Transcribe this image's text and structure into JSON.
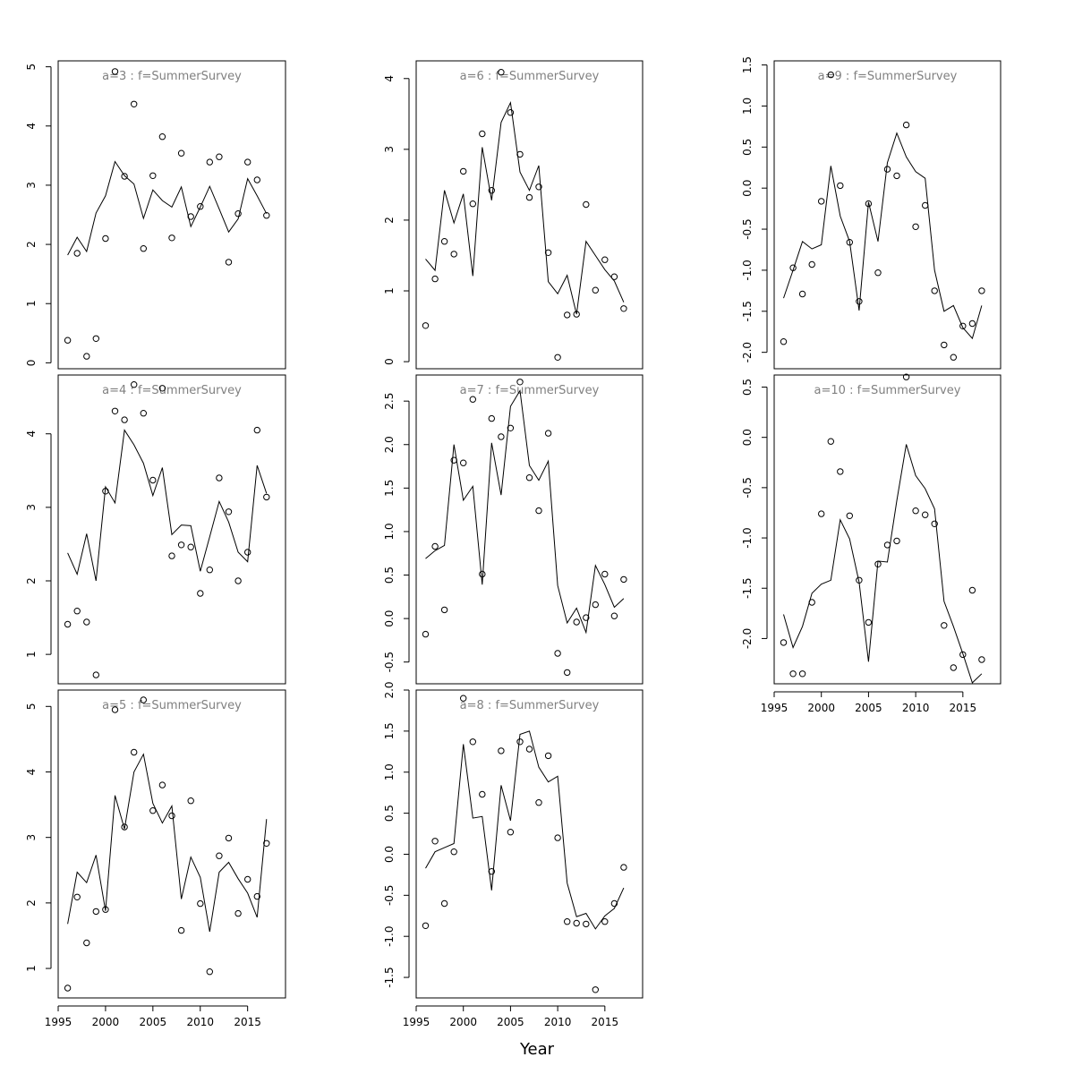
{
  "figure": {
    "xlabel": "Year"
  },
  "chart_data": [
    {
      "type": "line",
      "title": "a=3  :  f=SummerSurvey",
      "xlim": [
        1995,
        2019
      ],
      "ylim": [
        -0.1,
        5.1
      ],
      "yticks": [
        0,
        1,
        2,
        3,
        4,
        5
      ],
      "xticks": [],
      "x": [
        1996,
        1997,
        1998,
        1999,
        2000,
        2001,
        2002,
        2003,
        2004,
        2005,
        2006,
        2007,
        2008,
        2009,
        2010,
        2011,
        2012,
        2013,
        2014,
        2015,
        2016,
        2017
      ],
      "series": [
        {
          "kind": "observed",
          "values": [
            0.38,
            1.85,
            0.11,
            0.41,
            2.1,
            4.92,
            3.15,
            4.37,
            1.93,
            3.16,
            3.82,
            2.11,
            3.54,
            2.47,
            2.64,
            3.39,
            3.48,
            1.7,
            2.52,
            3.39,
            3.09,
            2.49
          ]
        },
        {
          "kind": "fitted",
          "values": [
            1.82,
            2.12,
            1.88,
            2.53,
            2.82,
            3.4,
            3.16,
            3.02,
            2.44,
            2.92,
            2.74,
            2.63,
            2.97,
            2.3,
            2.63,
            2.98,
            2.6,
            2.21,
            2.43,
            3.11,
            2.82,
            2.52
          ]
        }
      ]
    },
    {
      "type": "line",
      "title": "a=4  :  f=SummerSurvey",
      "xlim": [
        1995,
        2019
      ],
      "ylim": [
        0.6,
        4.8
      ],
      "yticks": [
        1,
        2,
        3,
        4
      ],
      "xticks": [],
      "x": [
        1996,
        1997,
        1998,
        1999,
        2000,
        2001,
        2002,
        2003,
        2004,
        2005,
        2006,
        2007,
        2008,
        2009,
        2010,
        2011,
        2012,
        2013,
        2014,
        2015,
        2016,
        2017
      ],
      "series": [
        {
          "kind": "observed",
          "values": [
            1.41,
            1.59,
            1.44,
            0.72,
            3.22,
            4.31,
            4.19,
            4.67,
            4.28,
            3.37,
            4.62,
            2.34,
            2.49,
            2.46,
            1.83,
            2.15,
            3.4,
            2.94,
            2.0,
            2.39,
            4.05,
            3.14
          ]
        },
        {
          "kind": "fitted",
          "values": [
            2.38,
            2.09,
            2.64,
            2.0,
            3.28,
            3.06,
            4.05,
            3.85,
            3.6,
            3.16,
            3.54,
            2.63,
            2.76,
            2.75,
            2.13,
            2.6,
            3.08,
            2.8,
            2.39,
            2.26,
            3.57,
            3.19
          ]
        }
      ]
    },
    {
      "type": "line",
      "title": "a=5  :  f=SummerSurvey",
      "xlim": [
        1995,
        2019
      ],
      "ylim": [
        0.55,
        5.25
      ],
      "yticks": [
        1,
        2,
        3,
        4,
        5
      ],
      "xticks": [
        1995,
        2000,
        2005,
        2010,
        2015
      ],
      "x": [
        1996,
        1997,
        1998,
        1999,
        2000,
        2001,
        2002,
        2003,
        2004,
        2005,
        2006,
        2007,
        2008,
        2009,
        2010,
        2011,
        2012,
        2013,
        2014,
        2015,
        2016,
        2017
      ],
      "series": [
        {
          "kind": "observed",
          "values": [
            0.7,
            2.09,
            1.39,
            1.87,
            1.9,
            4.95,
            3.16,
            4.3,
            5.1,
            3.41,
            3.8,
            3.33,
            1.58,
            3.56,
            1.99,
            0.95,
            2.72,
            2.99,
            1.84,
            2.36,
            2.1,
            2.91
          ]
        },
        {
          "kind": "fitted",
          "values": [
            1.68,
            2.47,
            2.31,
            2.73,
            1.88,
            3.64,
            3.13,
            4.0,
            4.27,
            3.52,
            3.22,
            3.48,
            2.06,
            2.7,
            2.39,
            1.56,
            2.47,
            2.62,
            2.37,
            2.15,
            1.78,
            3.28
          ]
        }
      ]
    },
    {
      "type": "line",
      "title": "a=6  :  f=SummerSurvey",
      "xlim": [
        1995,
        2019
      ],
      "ylim": [
        -0.1,
        4.25
      ],
      "yticks": [
        0,
        1,
        2,
        3,
        4
      ],
      "xticks": [],
      "x": [
        1996,
        1997,
        1998,
        1999,
        2000,
        2001,
        2002,
        2003,
        2004,
        2005,
        2006,
        2007,
        2008,
        2009,
        2010,
        2011,
        2012,
        2013,
        2014,
        2015,
        2016,
        2017
      ],
      "series": [
        {
          "kind": "observed",
          "values": [
            0.51,
            1.17,
            1.7,
            1.52,
            2.69,
            2.23,
            3.22,
            2.42,
            4.09,
            3.52,
            2.93,
            2.32,
            2.47,
            1.54,
            0.06,
            0.66,
            0.67,
            2.22,
            1.01,
            1.44,
            1.2,
            0.75
          ]
        },
        {
          "kind": "fitted",
          "values": [
            1.45,
            1.29,
            2.42,
            1.96,
            2.37,
            1.21,
            3.03,
            2.28,
            3.38,
            3.66,
            2.68,
            2.42,
            2.77,
            1.13,
            0.96,
            1.22,
            0.67,
            1.7,
            1.5,
            1.3,
            1.14,
            0.84
          ]
        }
      ]
    },
    {
      "type": "line",
      "title": "a=7  :  f=SummerSurvey",
      "xlim": [
        1995,
        2019
      ],
      "ylim": [
        -0.75,
        2.8
      ],
      "yticks": [
        -0.5,
        0.0,
        0.5,
        1.0,
        1.5,
        2.0,
        2.5
      ],
      "xticks": [],
      "x": [
        1996,
        1997,
        1998,
        1999,
        2000,
        2001,
        2002,
        2003,
        2004,
        2005,
        2006,
        2007,
        2008,
        2009,
        2010,
        2011,
        2012,
        2013,
        2014,
        2015,
        2016,
        2017
      ],
      "series": [
        {
          "kind": "observed",
          "values": [
            -0.18,
            0.83,
            0.1,
            1.82,
            1.79,
            2.52,
            0.51,
            2.3,
            2.09,
            2.19,
            2.72,
            1.62,
            1.24,
            2.13,
            -0.4,
            -0.62,
            -0.04,
            0.01,
            0.16,
            0.51,
            0.03,
            0.45
          ]
        },
        {
          "kind": "fitted",
          "values": [
            0.69,
            0.78,
            0.84,
            2.0,
            1.36,
            1.52,
            0.39,
            2.02,
            1.42,
            2.44,
            2.62,
            1.76,
            1.59,
            1.81,
            0.38,
            -0.05,
            0.12,
            -0.16,
            0.61,
            0.39,
            0.13,
            0.23
          ]
        }
      ]
    },
    {
      "type": "line",
      "title": "a=8  :  f=SummerSurvey",
      "xlim": [
        1995,
        2019
      ],
      "ylim": [
        -1.75,
        2.0
      ],
      "yticks": [
        -1.5,
        -1.0,
        -0.5,
        0.0,
        0.5,
        1.0,
        1.5,
        2.0
      ],
      "xticks": [
        1995,
        2000,
        2005,
        2010,
        2015
      ],
      "x": [
        1996,
        1997,
        1998,
        1999,
        2000,
        2001,
        2002,
        2003,
        2004,
        2005,
        2006,
        2007,
        2008,
        2009,
        2010,
        2011,
        2012,
        2013,
        2014,
        2015,
        2016,
        2017
      ],
      "series": [
        {
          "kind": "observed",
          "values": [
            -0.87,
            0.16,
            -0.6,
            0.03,
            1.9,
            1.37,
            0.73,
            -0.21,
            1.26,
            0.27,
            1.37,
            1.28,
            0.63,
            1.2,
            0.2,
            -0.82,
            -0.84,
            -0.85,
            -1.65,
            -0.82,
            -0.6,
            -0.16
          ]
        },
        {
          "kind": "fitted",
          "values": [
            -0.17,
            0.03,
            0.08,
            0.13,
            1.34,
            0.44,
            0.46,
            -0.44,
            0.84,
            0.41,
            1.46,
            1.5,
            1.06,
            0.88,
            0.95,
            -0.35,
            -0.76,
            -0.72,
            -0.91,
            -0.75,
            -0.66,
            -0.41
          ]
        }
      ]
    },
    {
      "type": "line",
      "title": "a=9  :  f=SummerSurvey",
      "xlim": [
        1995,
        2019
      ],
      "ylim": [
        -2.2,
        1.55
      ],
      "yticks": [
        -2.0,
        -1.5,
        -1.0,
        -0.5,
        0.0,
        0.5,
        1.0,
        1.5
      ],
      "xticks": [],
      "x": [
        1996,
        1997,
        1998,
        1999,
        2000,
        2001,
        2002,
        2003,
        2004,
        2005,
        2006,
        2007,
        2008,
        2009,
        2010,
        2011,
        2012,
        2013,
        2014,
        2015,
        2016,
        2017
      ],
      "series": [
        {
          "kind": "observed",
          "values": [
            -1.87,
            -0.97,
            -1.29,
            -0.93,
            -0.16,
            1.38,
            0.03,
            -0.66,
            -1.38,
            -0.19,
            -1.03,
            0.23,
            0.15,
            0.77,
            -0.47,
            -0.21,
            -1.25,
            -1.91,
            -2.06,
            -1.68,
            -1.65,
            -1.25
          ]
        },
        {
          "kind": "fitted",
          "values": [
            -1.34,
            -1.0,
            -0.65,
            -0.74,
            -0.69,
            0.27,
            -0.34,
            -0.65,
            -1.49,
            -0.17,
            -0.65,
            0.31,
            0.67,
            0.38,
            0.2,
            0.12,
            -1.0,
            -1.5,
            -1.43,
            -1.7,
            -1.83,
            -1.43
          ]
        }
      ]
    },
    {
      "type": "line",
      "title": "a=10  :  f=SummerSurvey",
      "xlim": [
        1995,
        2019
      ],
      "ylim": [
        -2.45,
        0.62
      ],
      "yticks": [
        -2.0,
        -1.5,
        -1.0,
        -0.5,
        0.0,
        0.5
      ],
      "xticks": [
        1995,
        2000,
        2005,
        2010,
        2015
      ],
      "x": [
        1996,
        1997,
        1998,
        1999,
        2000,
        2001,
        2002,
        2003,
        2004,
        2005,
        2006,
        2007,
        2008,
        2009,
        2010,
        2011,
        2012,
        2013,
        2014,
        2015,
        2016,
        2017
      ],
      "series": [
        {
          "kind": "observed",
          "values": [
            -2.04,
            -2.35,
            -2.35,
            -1.64,
            -0.76,
            -0.04,
            -0.34,
            -0.78,
            -1.42,
            -1.84,
            -1.26,
            -1.07,
            -1.03,
            0.6,
            -0.73,
            -0.77,
            -0.86,
            -1.87,
            -2.29,
            -2.16,
            -1.52,
            -2.21
          ]
        },
        {
          "kind": "fitted",
          "values": [
            -1.76,
            -2.09,
            -1.88,
            -1.55,
            -1.46,
            -1.42,
            -0.82,
            -1.01,
            -1.44,
            -2.23,
            -1.23,
            -1.24,
            -0.63,
            -0.07,
            -0.38,
            -0.51,
            -0.71,
            -1.63,
            -1.88,
            -2.15,
            -2.44,
            -2.35
          ]
        }
      ]
    }
  ]
}
